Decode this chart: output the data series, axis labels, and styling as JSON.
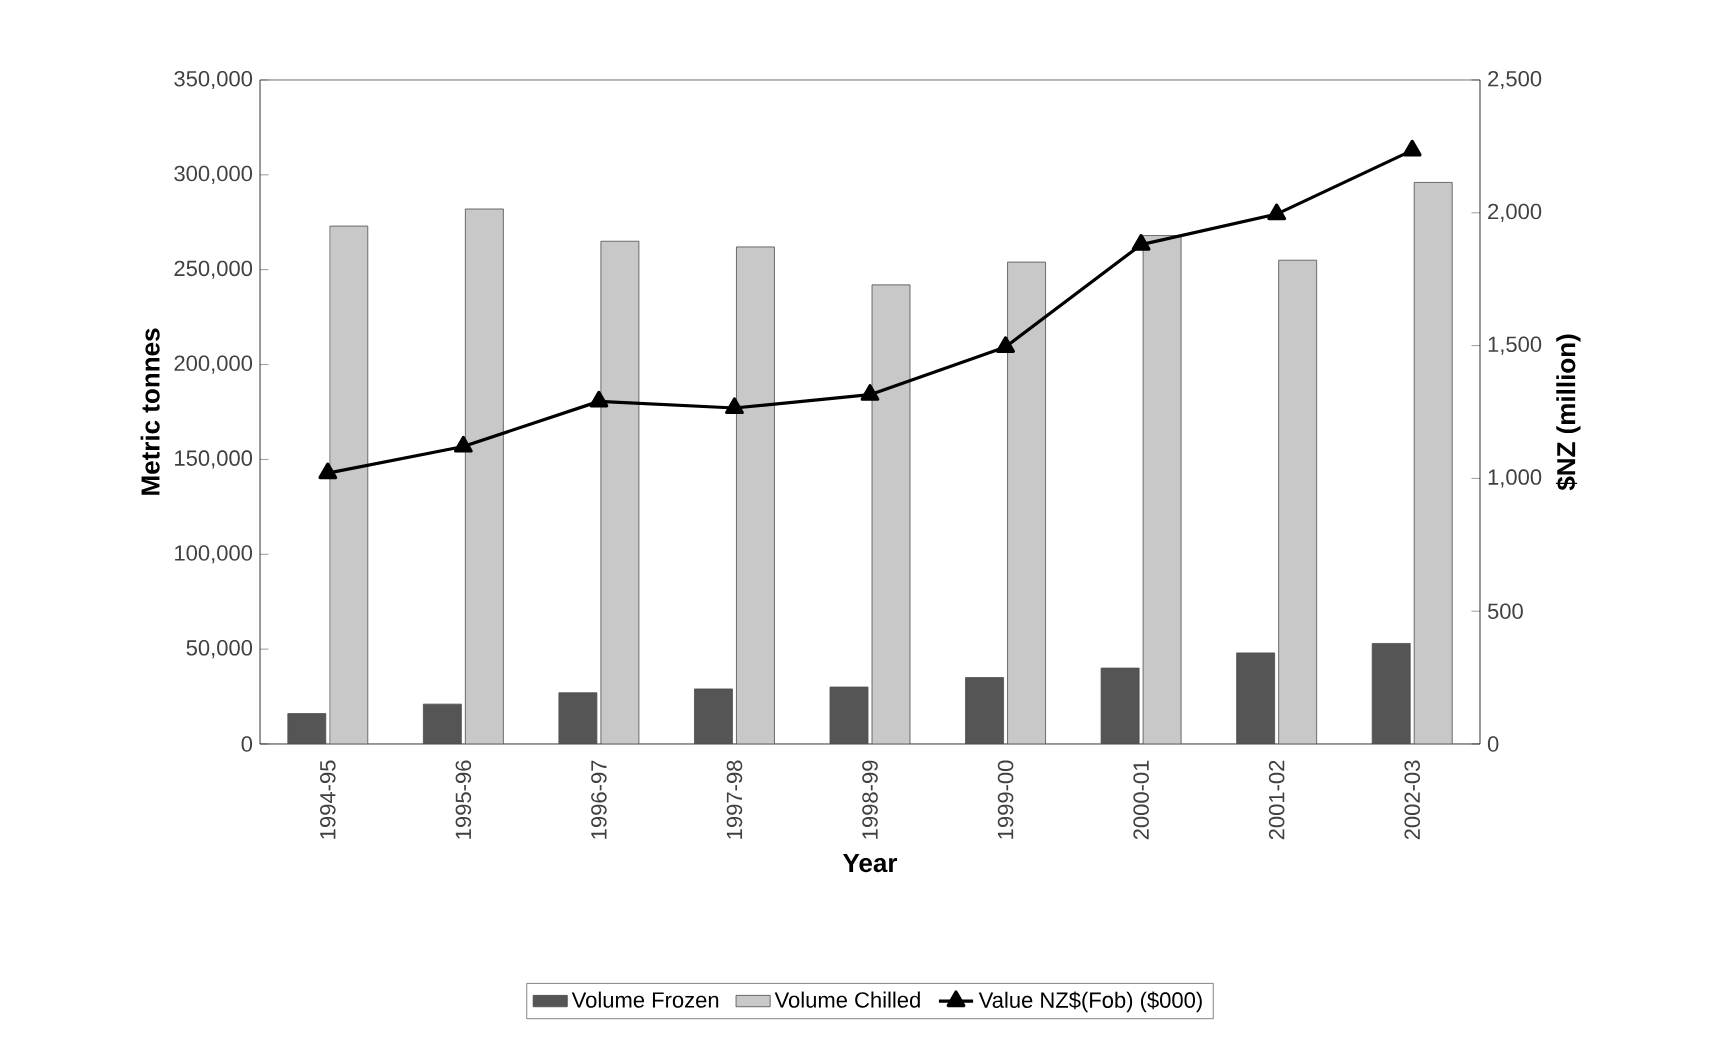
{
  "chart_data": {
    "type": "bar",
    "xlabel": "Year",
    "ylabel": "Metric tonnes",
    "y2label": "$NZ (million)",
    "categories": [
      "1994-95",
      "1995-96",
      "1996-97",
      "1997-98",
      "1998-99",
      "1999-00",
      "2000-01",
      "2001-02",
      "2002-03"
    ],
    "series": [
      {
        "name": "Volume Frozen",
        "color": "#555555",
        "values": [
          16000,
          21000,
          27000,
          29000,
          30000,
          35000,
          40000,
          48000,
          53000
        ]
      },
      {
        "name": "Volume Chilled",
        "color": "#c8c8c8",
        "values": [
          273000,
          282000,
          265000,
          262000,
          242000,
          254000,
          268000,
          255000,
          296000
        ]
      },
      {
        "name": "Value NZ$(Fob) ($000)",
        "color": "#000000",
        "type": "line",
        "axis": "y2",
        "marker": "triangle",
        "line_style": "solid",
        "values": [
          1020,
          1120,
          1290,
          1265,
          1315,
          1495,
          1880,
          1995,
          2235
        ]
      }
    ],
    "ylim": [
      0,
      350000
    ],
    "yticks": [
      0,
      {
        "value": 50000,
        "label": "50,000"
      },
      {
        "value": 100000,
        "label": "100,000"
      },
      {
        "value": 150000,
        "label": "150,000"
      },
      {
        "value": 200000,
        "label": "200,000"
      },
      {
        "value": 250000,
        "label": "250,000"
      },
      {
        "value": 300000,
        "label": "300,000"
      },
      {
        "value": 350000,
        "label": "350,000"
      }
    ],
    "y2lim": [
      0,
      2500
    ],
    "y2ticks": [
      0,
      500,
      {
        "value": 1000,
        "label": "1,000"
      },
      {
        "value": 1500,
        "label": "1,500"
      },
      {
        "value": 2000,
        "label": "2,000"
      },
      {
        "value": 2500,
        "label": "2,500"
      }
    ],
    "grid": false,
    "legend": "bottom"
  }
}
